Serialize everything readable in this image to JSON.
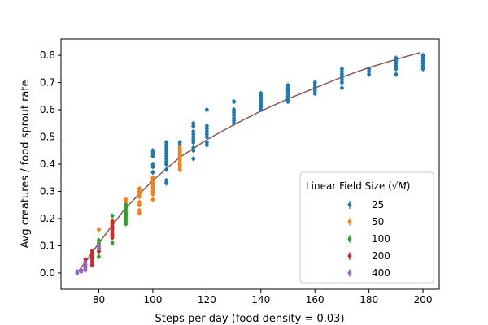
{
  "chart_data": {
    "type": "scatter",
    "title": "",
    "xlabel": "Steps per day (food density = 0.03)",
    "ylabel": "Avg creatures / food sprout rate",
    "xlim": [
      66,
      206
    ],
    "ylim": [
      -0.06,
      0.86
    ],
    "xticks": [
      80,
      100,
      120,
      140,
      160,
      180,
      200
    ],
    "yticks": [
      0.0,
      0.1,
      0.2,
      0.3,
      0.4,
      0.5,
      0.6,
      0.7,
      0.8
    ],
    "grid": false,
    "legend": {
      "title_prefix": "Linear Field Size (",
      "title_math": "√M",
      "title_suffix": ")",
      "placement": "lower-right"
    },
    "series": [
      {
        "name": "25",
        "color": "#1f77b4",
        "groups": [
          {
            "x": 100,
            "y": [
              0.31,
              0.33,
              0.35,
              0.37,
              0.39,
              0.4,
              0.43,
              0.44,
              0.45
            ]
          },
          {
            "x": 105,
            "y": [
              0.33,
              0.34,
              0.38,
              0.4,
              0.41,
              0.42,
              0.43,
              0.44,
              0.45,
              0.46,
              0.47,
              0.48
            ]
          },
          {
            "x": 110,
            "y": [
              0.38,
              0.4,
              0.43,
              0.44,
              0.45,
              0.46,
              0.47,
              0.48
            ]
          },
          {
            "x": 115,
            "y": [
              0.42,
              0.45,
              0.46,
              0.48,
              0.49,
              0.5,
              0.51,
              0.52,
              0.54,
              0.55
            ]
          },
          {
            "x": 120,
            "y": [
              0.47,
              0.48,
              0.5,
              0.51,
              0.52,
              0.53,
              0.54,
              0.6
            ]
          },
          {
            "x": 130,
            "y": [
              0.55,
              0.56,
              0.57,
              0.58,
              0.59,
              0.6,
              0.63
            ]
          },
          {
            "x": 140,
            "y": [
              0.6,
              0.61,
              0.62,
              0.63,
              0.64,
              0.65,
              0.66
            ]
          },
          {
            "x": 150,
            "y": [
              0.63,
              0.64,
              0.65,
              0.66,
              0.67,
              0.68,
              0.69
            ]
          },
          {
            "x": 160,
            "y": [
              0.66,
              0.67,
              0.68,
              0.69,
              0.7
            ]
          },
          {
            "x": 170,
            "y": [
              0.68,
              0.7,
              0.71,
              0.72,
              0.73,
              0.74,
              0.75
            ]
          },
          {
            "x": 180,
            "y": [
              0.73,
              0.74,
              0.75
            ]
          },
          {
            "x": 190,
            "y": [
              0.73,
              0.75,
              0.76,
              0.77,
              0.78,
              0.79
            ]
          },
          {
            "x": 200,
            "y": [
              0.75,
              0.76,
              0.77,
              0.78,
              0.79,
              0.8
            ]
          }
        ]
      },
      {
        "name": "50",
        "color": "#ff7f0e",
        "groups": [
          {
            "x": 80,
            "y": [
              0.16
            ]
          },
          {
            "x": 90,
            "y": [
              0.2,
              0.21,
              0.22,
              0.23,
              0.24,
              0.25,
              0.26,
              0.27
            ]
          },
          {
            "x": 95,
            "y": [
              0.22,
              0.23,
              0.25,
              0.26,
              0.28,
              0.29,
              0.3,
              0.31
            ]
          },
          {
            "x": 100,
            "y": [
              0.27,
              0.29,
              0.3,
              0.31,
              0.32,
              0.33,
              0.34,
              0.35
            ]
          },
          {
            "x": 110,
            "y": [
              0.38,
              0.39,
              0.4,
              0.41,
              0.42,
              0.43,
              0.44,
              0.45,
              0.46
            ]
          }
        ]
      },
      {
        "name": "100",
        "color": "#2ca02c",
        "groups": [
          {
            "x": 80,
            "y": [
              0.06,
              0.08,
              0.09,
              0.1,
              0.11,
              0.12
            ]
          },
          {
            "x": 85,
            "y": [
              0.11,
              0.13,
              0.14,
              0.15,
              0.16,
              0.17,
              0.18,
              0.19,
              0.21
            ]
          },
          {
            "x": 90,
            "y": [
              0.18,
              0.19,
              0.2,
              0.21,
              0.22,
              0.23,
              0.24,
              0.25
            ]
          }
        ]
      },
      {
        "name": "200",
        "color": "#d62728",
        "groups": [
          {
            "x": 75,
            "y": [
              0.02,
              0.03,
              0.04,
              0.05
            ]
          },
          {
            "x": 77.5,
            "y": [
              0.03,
              0.04,
              0.05,
              0.06,
              0.07,
              0.08
            ]
          },
          {
            "x": 80,
            "y": [
              0.08,
              0.09,
              0.1
            ]
          },
          {
            "x": 85,
            "y": [
              0.13,
              0.14,
              0.15,
              0.16,
              0.17,
              0.18,
              0.19
            ]
          }
        ]
      },
      {
        "name": "400",
        "color": "#9467bd",
        "groups": [
          {
            "x": 72,
            "y": [
              0.0,
              0.005
            ]
          },
          {
            "x": 73.5,
            "y": [
              0.005,
              0.01
            ]
          },
          {
            "x": 75,
            "y": [
              0.01,
              0.015,
              0.02,
              0.025,
              0.03,
              0.04
            ]
          },
          {
            "x": 80,
            "y": [
              0.09,
              0.1
            ]
          }
        ]
      }
    ],
    "fit_line": {
      "color": "#8c564b",
      "points": [
        [
          72,
          0.0
        ],
        [
          75,
          0.04
        ],
        [
          80,
          0.11
        ],
        [
          85,
          0.175
        ],
        [
          90,
          0.24
        ],
        [
          95,
          0.29
        ],
        [
          100,
          0.34
        ],
        [
          110,
          0.425
        ],
        [
          120,
          0.49
        ],
        [
          130,
          0.545
        ],
        [
          140,
          0.595
        ],
        [
          150,
          0.64
        ],
        [
          160,
          0.68
        ],
        [
          170,
          0.72
        ],
        [
          180,
          0.755
        ],
        [
          190,
          0.785
        ],
        [
          199,
          0.81
        ]
      ]
    }
  }
}
